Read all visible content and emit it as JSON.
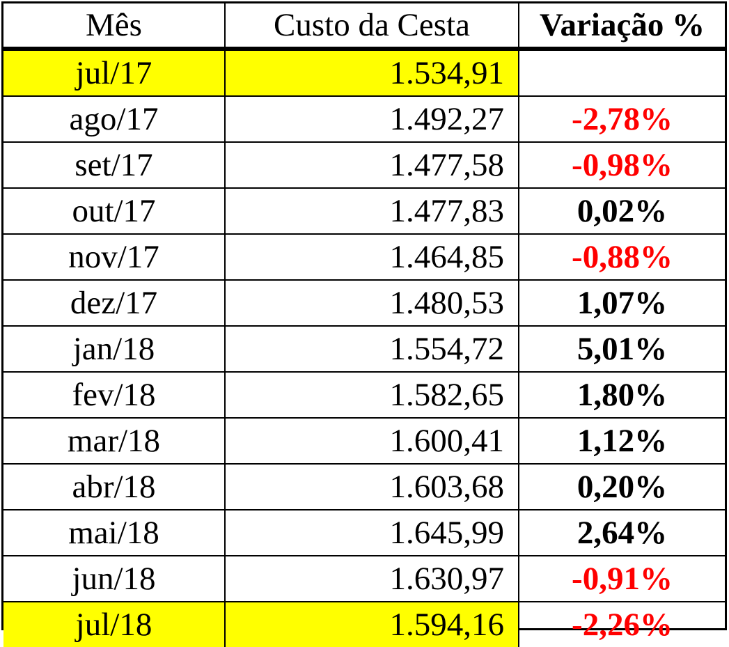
{
  "table": {
    "headers": {
      "month": "Mês",
      "cost": "Custo da Cesta",
      "variation": "Variação %"
    },
    "rows": [
      {
        "month": "jul/17",
        "cost": "1.534,91",
        "variation": "",
        "highlight": true,
        "negative": false
      },
      {
        "month": "ago/17",
        "cost": "1.492,27",
        "variation": "-2,78%",
        "highlight": false,
        "negative": true
      },
      {
        "month": "set/17",
        "cost": "1.477,58",
        "variation": "-0,98%",
        "highlight": false,
        "negative": true
      },
      {
        "month": "out/17",
        "cost": "1.477,83",
        "variation": "0,02%",
        "highlight": false,
        "negative": false
      },
      {
        "month": "nov/17",
        "cost": "1.464,85",
        "variation": "-0,88%",
        "highlight": false,
        "negative": true
      },
      {
        "month": "dez/17",
        "cost": "1.480,53",
        "variation": "1,07%",
        "highlight": false,
        "negative": false
      },
      {
        "month": "jan/18",
        "cost": "1.554,72",
        "variation": "5,01%",
        "highlight": false,
        "negative": false
      },
      {
        "month": "fev/18",
        "cost": "1.582,65",
        "variation": "1,80%",
        "highlight": false,
        "negative": false
      },
      {
        "month": "mar/18",
        "cost": "1.600,41",
        "variation": "1,12%",
        "highlight": false,
        "negative": false
      },
      {
        "month": "abr/18",
        "cost": "1.603,68",
        "variation": "0,20%",
        "highlight": false,
        "negative": false
      },
      {
        "month": "mai/18",
        "cost": "1.645,99",
        "variation": "2,64%",
        "highlight": false,
        "negative": false
      },
      {
        "month": "jun/18",
        "cost": "1.630,97",
        "variation": "-0,91%",
        "highlight": false,
        "negative": true
      },
      {
        "month": "jul/18",
        "cost": "1.594,16",
        "variation": "-2,26%",
        "highlight": true,
        "negative": true
      }
    ]
  },
  "colors": {
    "highlight": "#ffff00",
    "negative": "#ff0000",
    "text": "#000000",
    "border": "#000000"
  }
}
